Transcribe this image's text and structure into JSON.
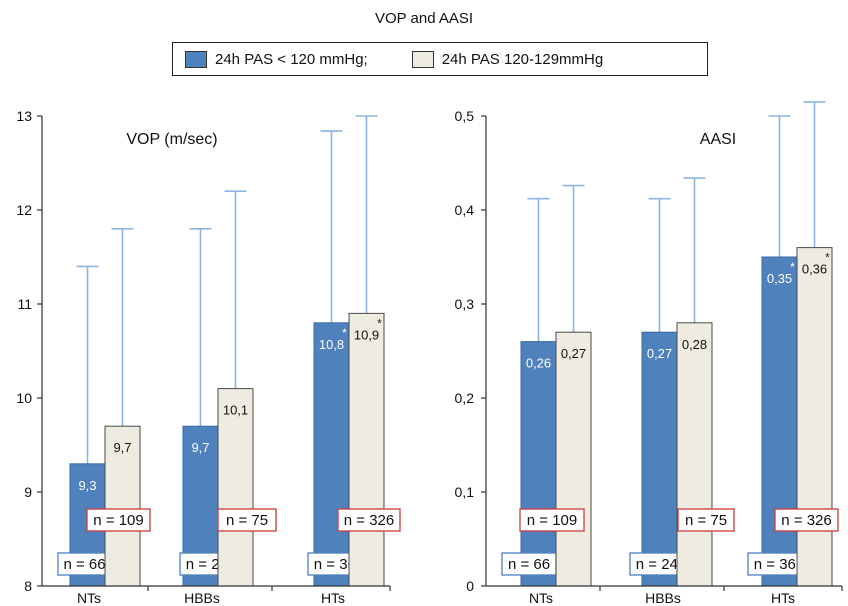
{
  "figure_title": "VOP and AASI",
  "legend": [
    {
      "label": "24h PAS < 120 mmHg;",
      "color": "#4f81bd"
    },
    {
      "label": "24h PAS 120-129mmHg",
      "color": "#eeece1"
    }
  ],
  "chart_data": [
    {
      "type": "bar",
      "title": "VOP (m/sec)",
      "categories": [
        "NTs",
        "HBBs",
        "HTs"
      ],
      "ylim": [
        8,
        13
      ],
      "yticks": [
        "8",
        "9",
        "10",
        "11",
        "12",
        "13"
      ],
      "grid": false,
      "series": [
        {
          "name": "24h PAS < 120 mmHg;",
          "values": [
            9.3,
            9.7,
            10.8
          ],
          "labels": [
            "9,3",
            "9,7",
            "10,8"
          ],
          "error_top": [
            11.4,
            11.8,
            12.84
          ],
          "asterisk": [
            false,
            false,
            true
          ],
          "n": [
            "n = 66",
            "n = 240",
            "n = 365"
          ]
        },
        {
          "name": "24h PAS 120-129mmHg",
          "values": [
            9.7,
            10.1,
            10.9
          ],
          "labels": [
            "9,7",
            "10,1",
            "10,9"
          ],
          "error_top": [
            11.8,
            12.2,
            13.0
          ],
          "asterisk": [
            false,
            false,
            true
          ],
          "n": [
            "n = 109",
            "n = 75",
            "n = 326"
          ]
        }
      ]
    },
    {
      "type": "bar",
      "title": "AASI",
      "categories": [
        "NTs",
        "HBBs",
        "HTs"
      ],
      "ylim": [
        0,
        0.5
      ],
      "yticks": [
        "0",
        "0,1",
        "0,2",
        "0,3",
        "0,4",
        "0,5"
      ],
      "grid": false,
      "series": [
        {
          "name": "24h PAS < 120 mmHg;",
          "values": [
            0.26,
            0.27,
            0.35
          ],
          "labels": [
            "0,26",
            "0,27",
            "0,35"
          ],
          "error_top": [
            0.412,
            0.412,
            0.5
          ],
          "asterisk": [
            false,
            false,
            true
          ],
          "n": [
            "n = 66",
            "n = 240",
            "n = 365"
          ]
        },
        {
          "name": "24h PAS 120-129mmHg",
          "values": [
            0.27,
            0.28,
            0.36
          ],
          "labels": [
            "0,27",
            "0,28",
            "0,36"
          ],
          "error_top": [
            0.426,
            0.434,
            0.515
          ],
          "asterisk": [
            false,
            false,
            true
          ],
          "n": [
            "n = 109",
            "n = 75",
            "n = 326"
          ]
        }
      ]
    }
  ],
  "colors": {
    "series1": "#4f81bd",
    "series1_stroke": "#3a6aa6",
    "series2": "#eeece1",
    "series2_stroke": "#4a4a4a",
    "error_bar": "#8eb4e3",
    "n_box_series1": "#4f81bd",
    "n_box_series2": "#d03a3a",
    "asterisk_on_series1": "#ffffff",
    "asterisk_on_series2": "#222222",
    "axis": "#333333"
  }
}
